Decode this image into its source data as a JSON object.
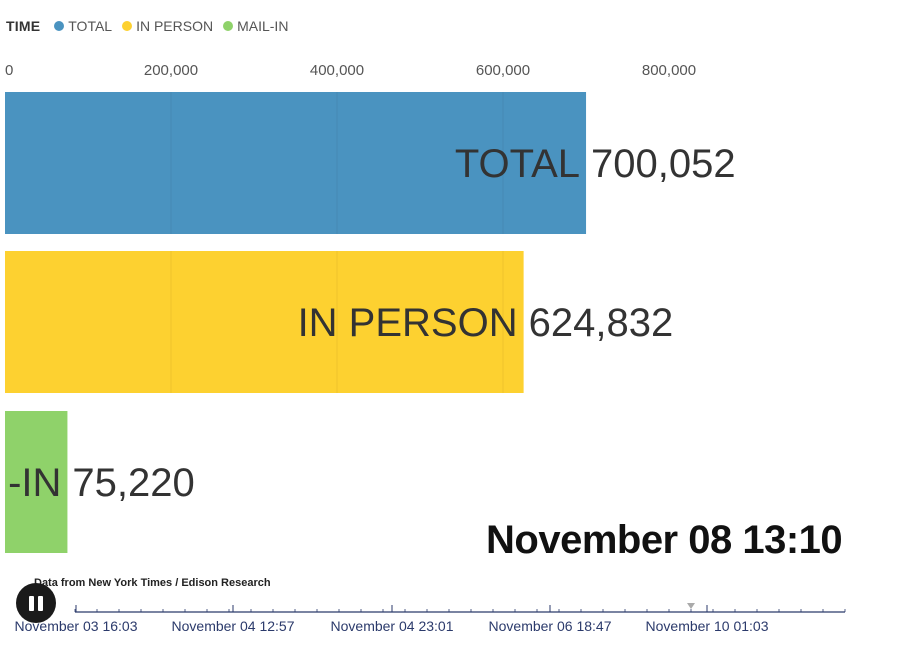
{
  "legend": {
    "title": "TIME",
    "items": [
      {
        "label": "TOTAL",
        "color": "#4a93c0"
      },
      {
        "label": "IN PERSON",
        "color": "#fdd130"
      },
      {
        "label": "MAIL-IN",
        "color": "#8fd26a"
      }
    ]
  },
  "chart_data": {
    "type": "bar",
    "orientation": "horizontal",
    "categories": [
      "TOTAL",
      "IN PERSON",
      "MAIL-IN"
    ],
    "visible_labels": [
      "TOTAL",
      "IN PERSON",
      "-IN"
    ],
    "values": [
      700052,
      624832,
      75220
    ],
    "value_labels": [
      "700,052",
      "624,832",
      "75,220"
    ],
    "colors": [
      "#4a93c0",
      "#fdd130",
      "#8fd26a"
    ],
    "xlim": [
      0,
      1000000
    ],
    "ticks": [
      0,
      200000,
      400000,
      600000,
      800000
    ],
    "tick_labels": [
      "0",
      "200,000",
      "400,000",
      "600,000",
      "800,000"
    ],
    "grid": true
  },
  "time_label": "November 08 13:10",
  "source": "Data from New York Times / Edison Research",
  "player": {
    "pause_icon": "pause-icon",
    "progress": 0.8,
    "timeline_labels": [
      "November 03 16:03",
      "November 04 12:57",
      "November 04 23:01",
      "November 06 18:47",
      "November 10 01:03"
    ]
  }
}
